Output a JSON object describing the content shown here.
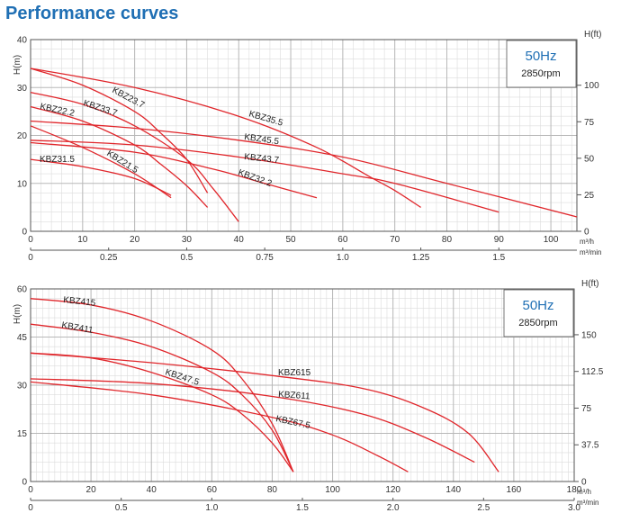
{
  "page_title": "Performance curves",
  "chart_data": [
    {
      "type": "line",
      "panel": "top",
      "ylabel": "H(m)",
      "ylabel_right": "H(ft)",
      "x_unit_label": "m³/h",
      "x2_unit_label": "m³/min",
      "xlim": [
        0,
        105
      ],
      "ylim": [
        0,
        40
      ],
      "x_ticks": [
        0,
        10,
        20,
        30,
        40,
        50,
        60,
        70,
        80,
        90,
        100
      ],
      "x_tick_labels": [
        "0",
        "10",
        "20",
        "30",
        "40",
        "50",
        "60",
        "70",
        "80",
        "90",
        "100"
      ],
      "y_ticks": [
        0,
        10,
        20,
        30,
        40
      ],
      "y_tick_labels": [
        "0",
        "10",
        "20",
        "30",
        "40"
      ],
      "x2_ticks": [
        0,
        0.25,
        0.5,
        0.75,
        1.0,
        1.25,
        1.5
      ],
      "x2_tick_labels": [
        "0",
        "0.25",
        "0.5",
        "0.75",
        "1.0",
        "1.25",
        "1.5"
      ],
      "y2_ticks": [
        0,
        25,
        50,
        75,
        100
      ],
      "y2_tick_labels": [
        "0",
        "25",
        "50",
        "75",
        "100"
      ],
      "grid": true,
      "info_box": {
        "frequency": "50Hz",
        "speed": "2850rpm"
      },
      "series": [
        {
          "name": "KBZ23.7",
          "x": [
            0,
            10,
            20,
            25,
            30,
            34
          ],
          "y": [
            34,
            30.5,
            25,
            20.5,
            15,
            8
          ]
        },
        {
          "name": "KBZ33.7",
          "x": [
            0,
            10,
            20,
            30,
            35,
            40
          ],
          "y": [
            29,
            26.5,
            22,
            15,
            9,
            2
          ]
        },
        {
          "name": "KBZ22.2",
          "x": [
            0,
            10,
            20,
            25,
            30,
            34
          ],
          "y": [
            26,
            23,
            18,
            14,
            9.5,
            5
          ]
        },
        {
          "name": "KBZ21.5",
          "x": [
            0,
            10,
            20,
            27
          ],
          "y": [
            22,
            17.5,
            12,
            7
          ]
        },
        {
          "name": "KBZ31.5",
          "x": [
            0,
            10,
            20,
            27
          ],
          "y": [
            15,
            13.5,
            11,
            7.5
          ]
        },
        {
          "name": "KBZ35.5",
          "x": [
            0,
            20,
            40,
            55,
            65,
            70,
            75
          ],
          "y": [
            34,
            30,
            24,
            17.5,
            11.5,
            8.5,
            5
          ]
        },
        {
          "name": "KBZ45.5",
          "x": [
            0,
            20,
            40,
            60,
            80,
            105
          ],
          "y": [
            23,
            21.5,
            19,
            15.5,
            10,
            3
          ]
        },
        {
          "name": "KBZ43.7",
          "x": [
            0,
            20,
            40,
            60,
            70,
            90
          ],
          "y": [
            19,
            18,
            15.5,
            12,
            10,
            4
          ]
        },
        {
          "name": "KBZ32.2",
          "x": [
            0,
            20,
            35,
            45,
            55
          ],
          "y": [
            18.5,
            16.5,
            13,
            10,
            7
          ]
        }
      ]
    },
    {
      "type": "line",
      "panel": "bottom",
      "ylabel": "H(m)",
      "ylabel_right": "H(ft)",
      "x_unit_label": "m³/h",
      "x2_unit_label": "m³/min",
      "xlim": [
        0,
        180
      ],
      "ylim": [
        0,
        60
      ],
      "x_ticks": [
        0,
        20,
        40,
        60,
        80,
        100,
        120,
        140,
        160,
        180
      ],
      "x_tick_labels": [
        "0",
        "20",
        "40",
        "60",
        "80",
        "100",
        "120",
        "140",
        "160",
        "180"
      ],
      "y_ticks": [
        0,
        15,
        30,
        45,
        60
      ],
      "y_tick_labels": [
        "0",
        "15",
        "30",
        "45",
        "60"
      ],
      "x2_ticks": [
        0,
        0.5,
        1.0,
        1.5,
        2.0,
        2.5,
        3.0
      ],
      "x2_tick_labels": [
        "0",
        "0.5",
        "1.0",
        "1.5",
        "2.0",
        "2.5",
        "3.0"
      ],
      "y2_ticks": [
        0,
        37.5,
        75,
        112.5,
        150
      ],
      "y2_tick_labels": [
        "0",
        "37.5",
        "75",
        "112.5",
        "150"
      ],
      "grid": true,
      "info_box": {
        "frequency": "50Hz",
        "speed": "2850rpm"
      },
      "series": [
        {
          "name": "KBZ415",
          "x": [
            0,
            20,
            40,
            60,
            70,
            80,
            87
          ],
          "y": [
            57,
            55,
            50,
            41,
            32,
            18,
            3
          ]
        },
        {
          "name": "KBZ411",
          "x": [
            0,
            20,
            40,
            60,
            70,
            80,
            87
          ],
          "y": [
            49,
            46.5,
            42,
            34,
            27,
            16,
            3
          ]
        },
        {
          "name": "KBZ47.5",
          "x": [
            0,
            20,
            40,
            60,
            70,
            80,
            87
          ],
          "y": [
            40,
            38.5,
            34,
            27,
            21,
            12,
            3
          ]
        },
        {
          "name": "KBZ615",
          "x": [
            0,
            40,
            80,
            110,
            130,
            145,
            155
          ],
          "y": [
            40,
            37,
            33,
            29,
            23,
            15,
            3
          ]
        },
        {
          "name": "KBZ611",
          "x": [
            0,
            40,
            80,
            110,
            130,
            147
          ],
          "y": [
            32,
            30.5,
            26.5,
            21,
            14,
            6
          ]
        },
        {
          "name": "KBZ67.5",
          "x": [
            0,
            40,
            80,
            100,
            115,
            125
          ],
          "y": [
            31,
            27,
            20,
            14.5,
            8,
            3
          ]
        }
      ]
    }
  ],
  "curve_color": "#e0262b",
  "grid_color": "#b8b8b8",
  "frame_color": "#555555",
  "accent_color": "#1f6fb4"
}
